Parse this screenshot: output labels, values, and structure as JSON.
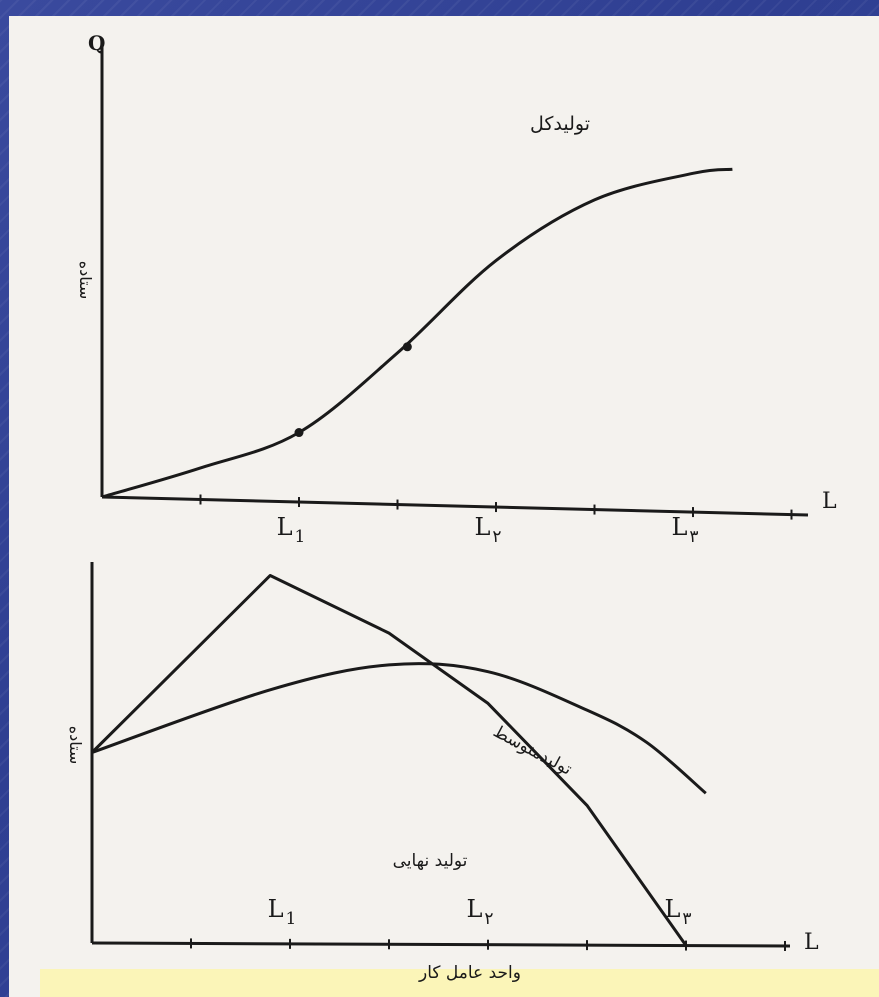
{
  "chart_data": [
    {
      "type": "line",
      "title": "",
      "ylabel": "ستاده",
      "yaxis_symbol": "Q",
      "xaxis_symbol": "L",
      "x_ticks": [
        {
          "label": "L",
          "sub": "1",
          "x": 1.0
        },
        {
          "label": "L",
          "sub": "۲",
          "x": 2.0
        },
        {
          "label": "L",
          "sub": "۳",
          "x": 3.0
        }
      ],
      "xlim": [
        0,
        4.2
      ],
      "ylim": [
        0,
        3.6
      ],
      "series": [
        {
          "name": "تولیدکل",
          "points": [
            [
              0,
              0
            ],
            [
              0.5,
              0.25
            ],
            [
              1.0,
              0.55
            ],
            [
              1.5,
              1.2
            ],
            [
              2.0,
              1.95
            ],
            [
              2.5,
              2.45
            ],
            [
              3.0,
              2.68
            ],
            [
              3.2,
              2.72
            ]
          ],
          "markers": [
            [
              1.0,
              0.55
            ],
            [
              1.55,
              1.25
            ]
          ]
        }
      ]
    },
    {
      "type": "line",
      "title": "",
      "ylabel": "ستاده",
      "xlabel": "واحد عامل کار",
      "xaxis_symbol": "L",
      "x_ticks": [
        {
          "label": "L",
          "sub": "1",
          "x": 1.0
        },
        {
          "label": "L",
          "sub": "۲",
          "x": 2.0
        },
        {
          "label": "L",
          "sub": "۳",
          "x": 3.0
        }
      ],
      "xlim": [
        0,
        4.2
      ],
      "ylim": [
        0,
        3.0
      ],
      "series": [
        {
          "name": "تولیدمتوسط",
          "points": [
            [
              0,
              1.5
            ],
            [
              0.9,
              2.0
            ],
            [
              1.5,
              2.2
            ],
            [
              2.0,
              2.15
            ],
            [
              2.5,
              1.85
            ],
            [
              2.8,
              1.6
            ],
            [
              3.1,
              1.2
            ]
          ]
        },
        {
          "name": "تولید نهایی",
          "points": [
            [
              0,
              1.5
            ],
            [
              0.9,
              2.9
            ],
            [
              1.5,
              2.45
            ],
            [
              2.0,
              1.9
            ],
            [
              2.5,
              1.1
            ],
            [
              3.0,
              0.0
            ]
          ]
        }
      ]
    }
  ]
}
